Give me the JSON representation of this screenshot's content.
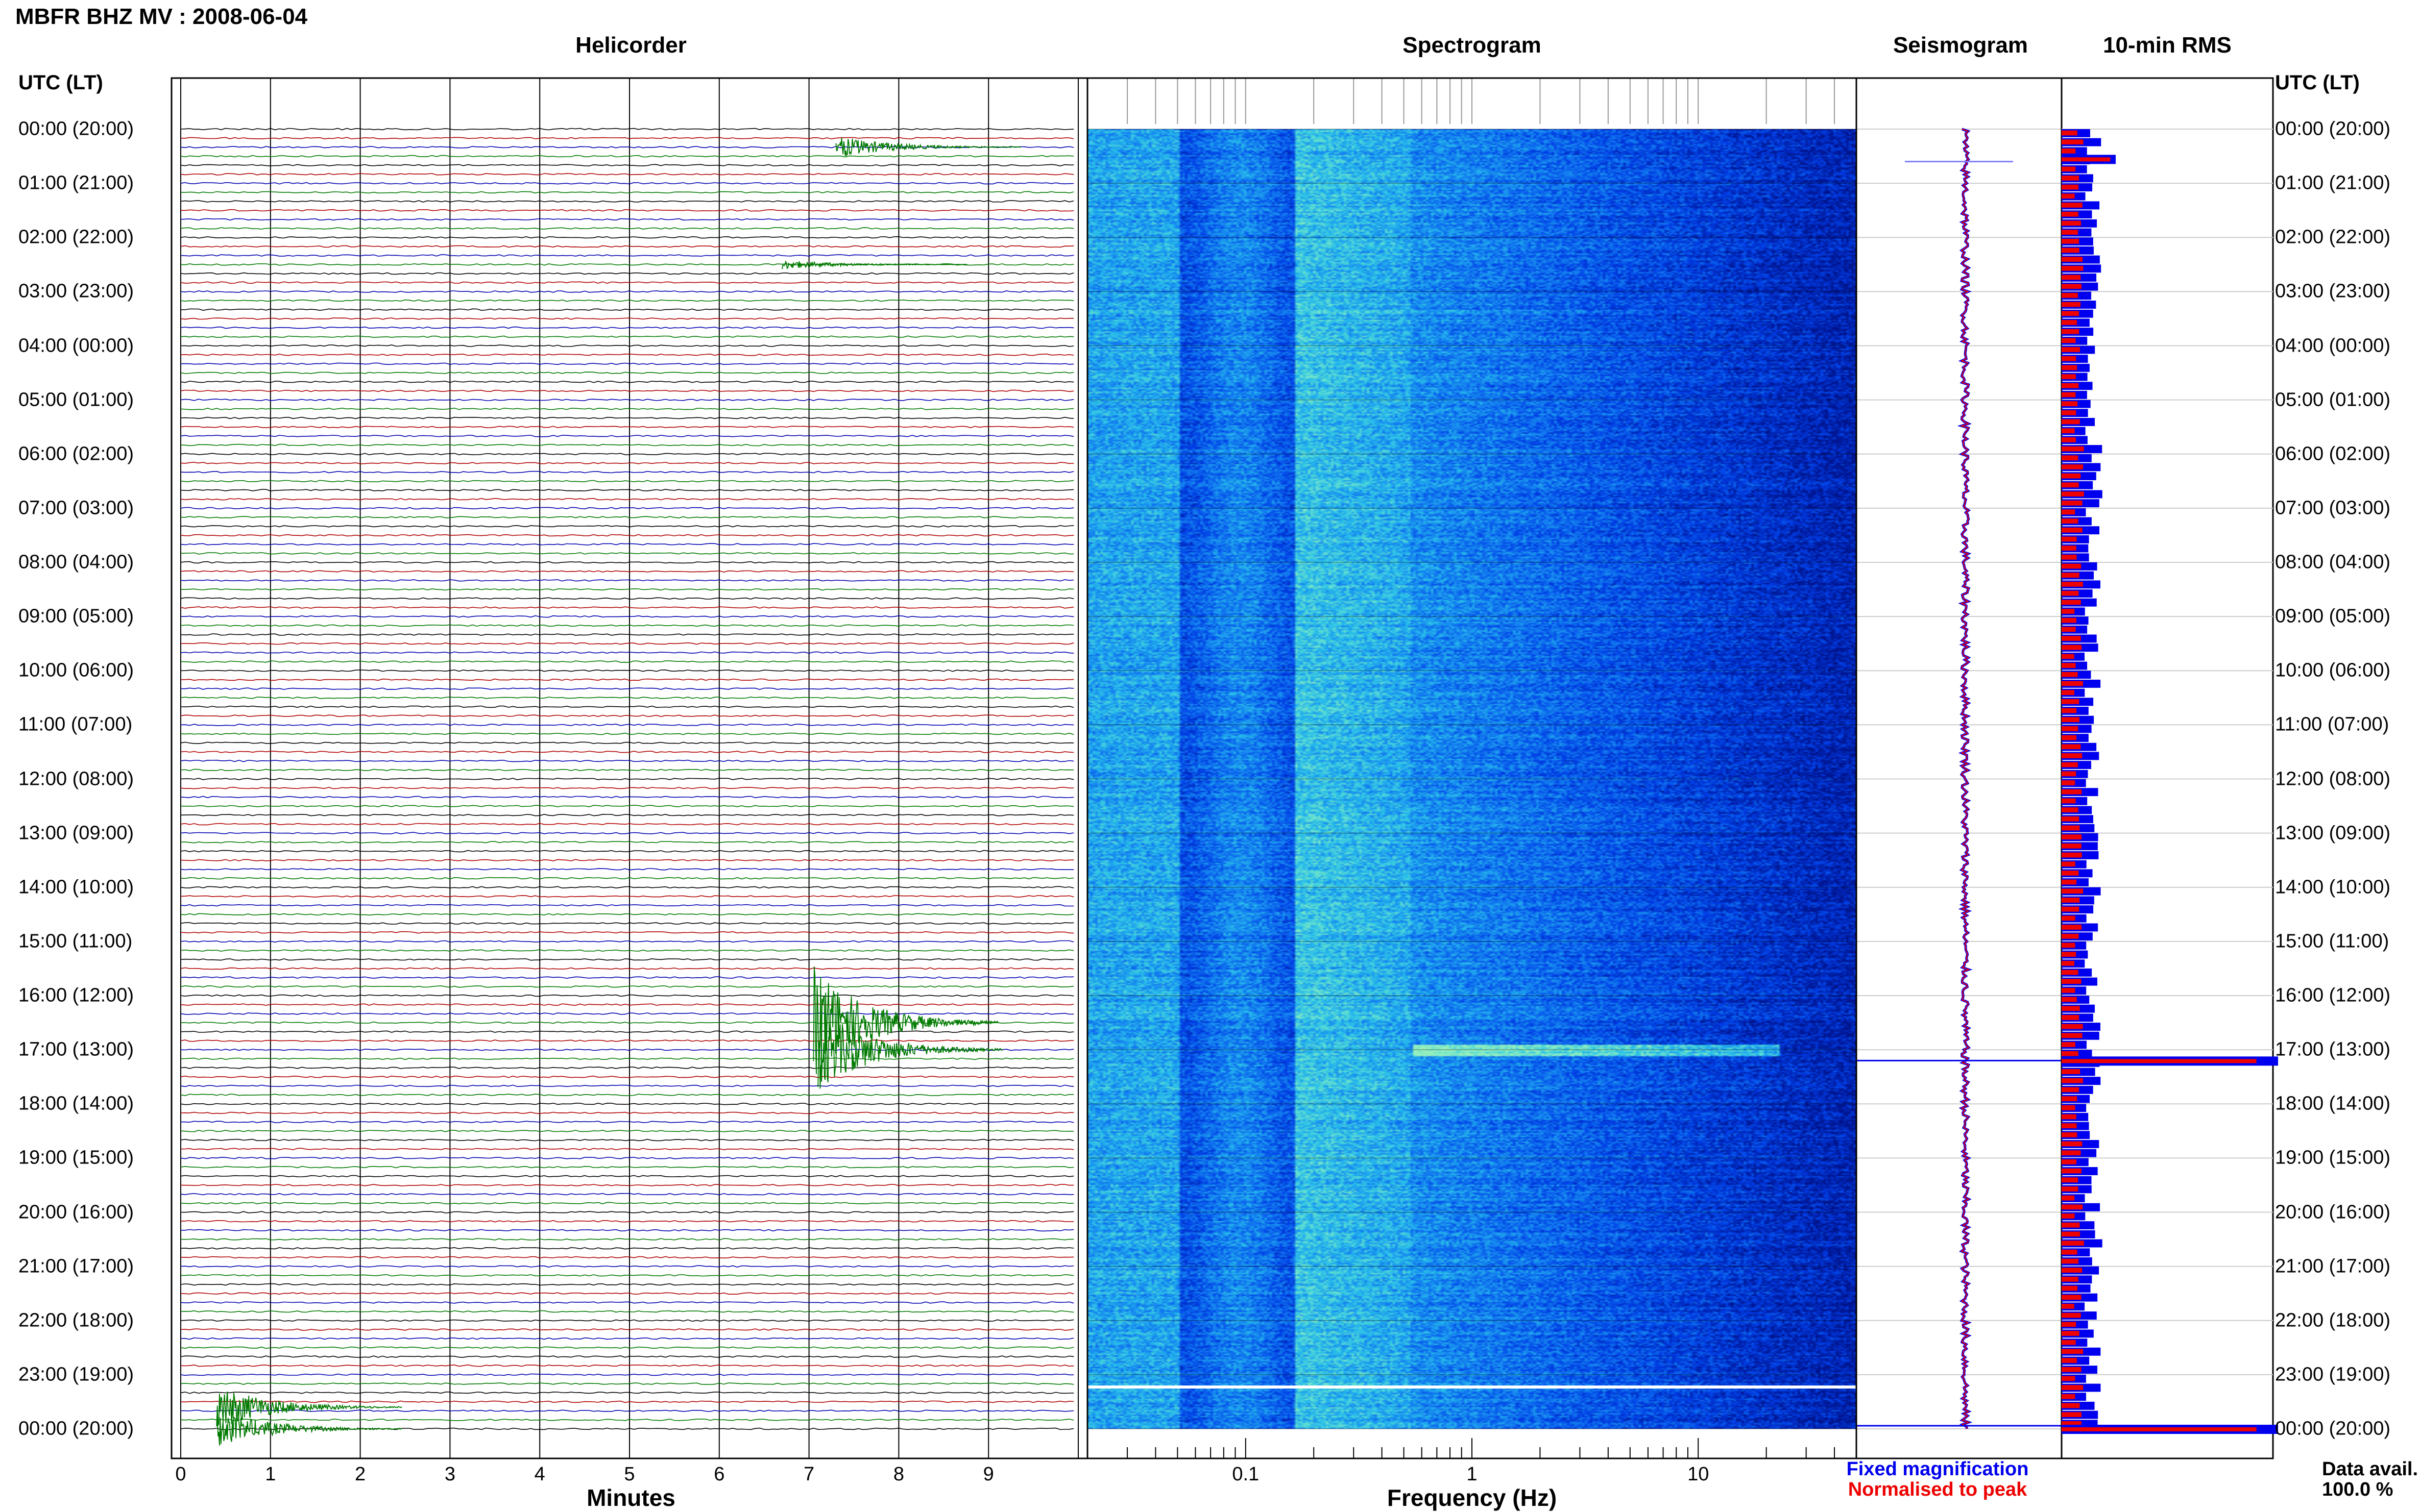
{
  "title": "MBFR BHZ MV : 2008-06-04",
  "panels": {
    "helicorder": "Helicorder",
    "spectrogram": "Spectrogram",
    "seismogram": "Seismogram",
    "rms": "10-min RMS"
  },
  "utc_label": "UTC (LT)",
  "time_labels": [
    "00:00 (20:00)",
    "01:00 (21:00)",
    "02:00 (22:00)",
    "03:00 (23:00)",
    "04:00 (00:00)",
    "05:00 (01:00)",
    "06:00 (02:00)",
    "07:00 (03:00)",
    "08:00 (04:00)",
    "09:00 (05:00)",
    "10:00 (06:00)",
    "11:00 (07:00)",
    "12:00 (08:00)",
    "13:00 (09:00)",
    "14:00 (10:00)",
    "15:00 (11:00)",
    "16:00 (12:00)",
    "17:00 (13:00)",
    "18:00 (14:00)",
    "19:00 (15:00)",
    "20:00 (16:00)",
    "21:00 (17:00)",
    "22:00 (18:00)",
    "23:00 (19:00)",
    "00:00 (20:00)"
  ],
  "minutes_axis": {
    "label": "Minutes",
    "ticks": [
      "0",
      "1",
      "2",
      "3",
      "4",
      "5",
      "6",
      "7",
      "8",
      "9"
    ]
  },
  "frequency_axis": {
    "label": "Frequency (Hz)",
    "ticks": [
      "0.1",
      "1",
      "10"
    ]
  },
  "legend": {
    "fixed": "Fixed magnification",
    "normalised": "Normalised to peak"
  },
  "data_avail": {
    "label": "Data avail.",
    "value": "100.0 %"
  },
  "colors": {
    "trace_black": "#000000",
    "trace_red": "#b00000",
    "trace_blue": "#0000b0",
    "trace_green": "#007a00",
    "fixed": "#0000ee",
    "normalised": "#ee0000"
  },
  "chart_data": {
    "type": "heatmap",
    "helicorder": {
      "x_range_minutes": [
        0,
        10
      ],
      "rows_per_hour": 6,
      "events": [
        {
          "hour": 0.33,
          "minute": 7.3,
          "amplitude": 0.6
        },
        {
          "hour": 2.5,
          "minute": 6.7,
          "amplitude": 0.25
        },
        {
          "hour": 16.5,
          "minute": 7.05,
          "amplitude": 3.0
        },
        {
          "hour": 17.0,
          "minute": 7.1,
          "amplitude": 2.2
        },
        {
          "hour": 23.6,
          "minute": 0.4,
          "amplitude": 1.2
        },
        {
          "hour": 24.0,
          "minute": 0.4,
          "amplitude": 1.0
        }
      ]
    },
    "spectrogram": {
      "x_scale": "log",
      "x_range_hz": [
        0.02,
        50
      ]
    },
    "rms": {
      "spikes": [
        {
          "hour": 0.55,
          "level": 0.25
        },
        {
          "hour": 17.2,
          "level": 1.0
        },
        {
          "hour": 24.0,
          "level": 1.0
        }
      ]
    }
  }
}
